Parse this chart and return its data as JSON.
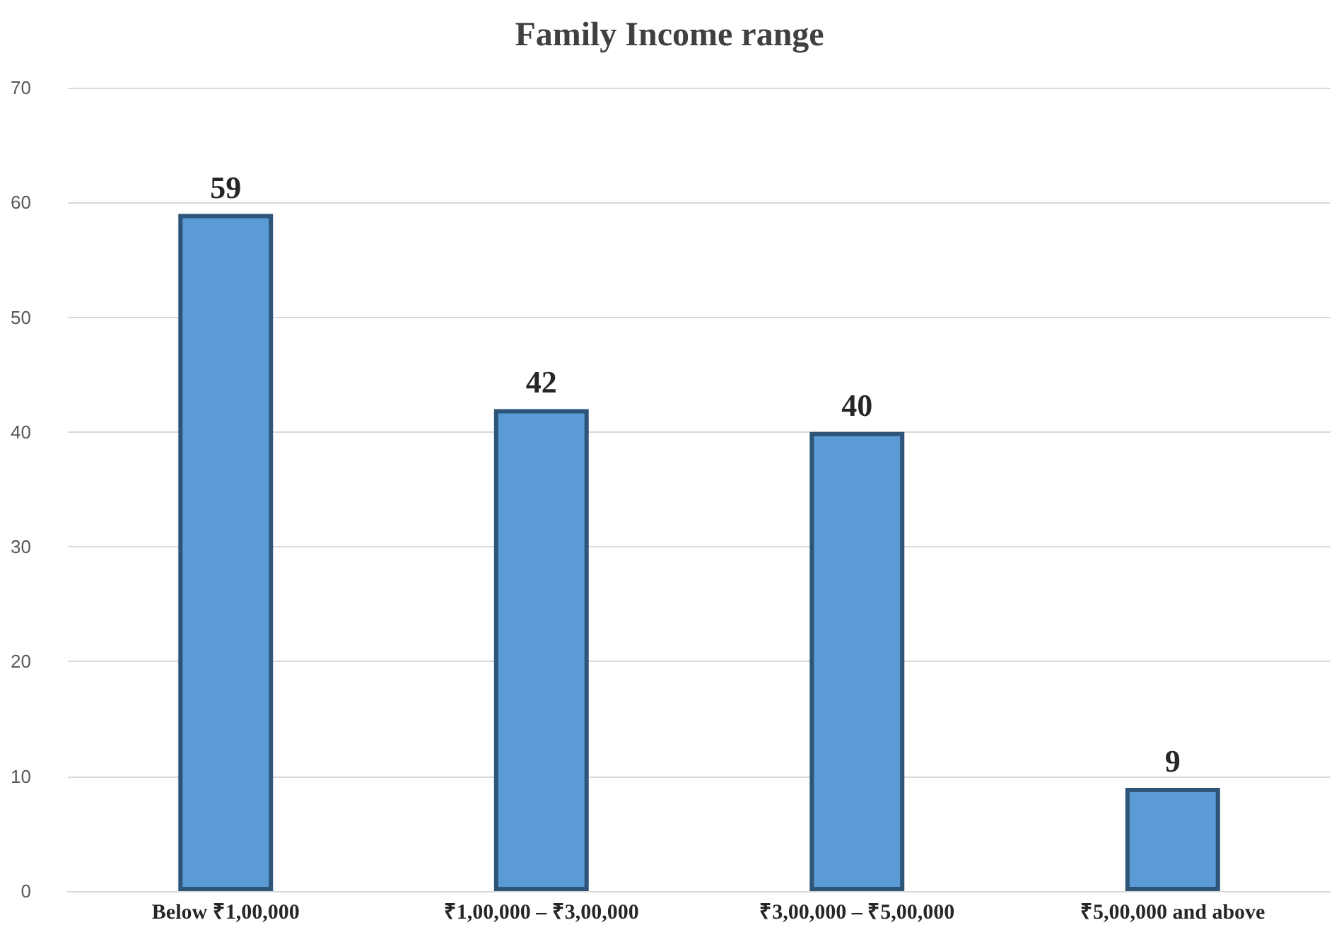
{
  "chart_data": {
    "type": "bar",
    "title": "Family Income range",
    "categories": [
      "Below ₹1,00,000",
      "₹1,00,000 – ₹3,00,000",
      "₹3,00,000 – ₹5,00,000",
      "₹5,00,000 and above"
    ],
    "values": [
      59,
      42,
      40,
      9
    ],
    "color": "#5b9bd5",
    "ylim": [
      0,
      70
    ],
    "yticks": [
      0,
      10,
      20,
      30,
      40,
      50,
      60,
      70
    ],
    "grid": "y",
    "data_labels": true
  }
}
